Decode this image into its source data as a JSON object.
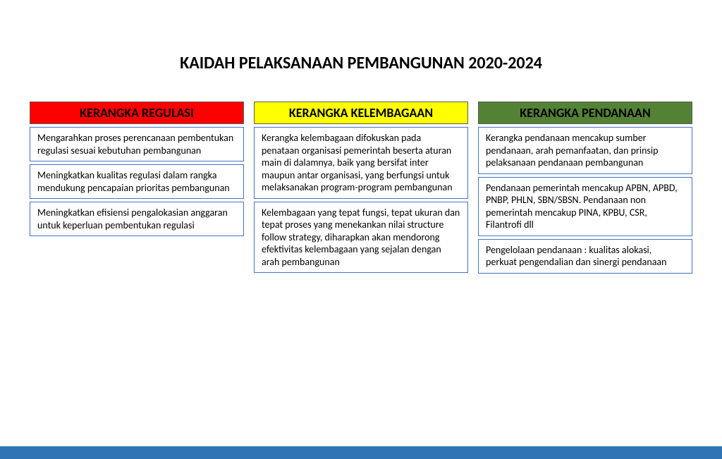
{
  "title": "KAIDAH PELAKSANAAN PEMBANGUNAN 2020-2024",
  "columns": [
    {
      "header": "KERANGKA REGULASI",
      "header_bg": "#ff0000",
      "header_color": "#000000",
      "boxes": [
        "Mengarahkan proses perencanaan pembentukan regulasi sesuai kebutuhan pembangunan",
        "Meningkatkan kualitas regulasi dalam rangka mendukung pencapaian prioritas pembangunan",
        "Meningkatkan efisiensi pengalokasian anggaran untuk keperluan pembentukan regulasi"
      ]
    },
    {
      "header": "KERANGKA KELEMBAGAAN",
      "header_bg": "#ffff00",
      "header_color": "#000000",
      "boxes": [
        "Kerangka kelembagaan difokuskan pada penataan organisasi pemerintah beserta aturan main di dalamnya, baik yang bersifat inter maupun antar organisasi, yang berfungsi untuk melaksanakan program-program pembangunan",
        "Kelembagaan yang tepat fungsi, tepat ukuran dan tepat proses yang menekankan nilai structure follow strategy, diharapkan akan mendorong efektivitas kelembagaan yang sejalan dengan arah pembangunan"
      ]
    },
    {
      "header": "KERANGKA PENDANAAN",
      "header_bg": "#548235",
      "header_color": "#000000",
      "boxes": [
        "Kerangka pendanaan mencakup sumber pendanaan, arah pemanfaatan, dan prinsip pelaksanaan pendanaan pembangunan",
        "Pendanaan pemerintah mencakup APBN, APBD, PNBP, PHLN, SBN/SBSN. Pendanaan non pemerintah mencakup PINA, KPBU, CSR, Filantrofi dll",
        "Pengelolaan pendanaan : kualitas alokasi, perkuat pengendalian dan sinergi pendanaan"
      ]
    }
  ],
  "footer_bar_color": "#2e75b6",
  "box_border_color": "#4472c4",
  "body_fontsize": 14,
  "title_fontsize": 24,
  "header_fontsize": 18
}
